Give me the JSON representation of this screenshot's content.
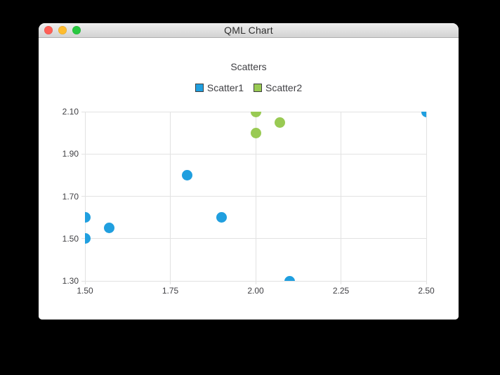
{
  "window": {
    "title": "QML Chart",
    "lights": {
      "close": "#ff5f57",
      "minimize": "#febc2e",
      "zoom": "#28c840"
    }
  },
  "chart_data": {
    "type": "scatter",
    "title": "Scatters",
    "series": [
      {
        "name": "Scatter1",
        "color": "#209fdf",
        "points": [
          [
            1.5,
            1.5
          ],
          [
            1.5,
            1.6
          ],
          [
            1.57,
            1.55
          ],
          [
            1.8,
            1.8
          ],
          [
            1.9,
            1.6
          ],
          [
            2.1,
            1.3
          ],
          [
            2.5,
            2.1
          ]
        ]
      },
      {
        "name": "Scatter2",
        "color": "#99ca53",
        "points": [
          [
            2.0,
            2.0
          ],
          [
            2.0,
            2.1
          ],
          [
            2.07,
            2.05
          ]
        ]
      }
    ],
    "xlim": [
      1.5,
      2.5
    ],
    "ylim": [
      1.3,
      2.1
    ],
    "x_ticks": [
      "1.50",
      "1.75",
      "2.00",
      "2.25",
      "2.50"
    ],
    "y_ticks": [
      "1.30",
      "1.50",
      "1.70",
      "1.90",
      "2.10"
    ],
    "grid": true,
    "legend_position": "top",
    "marker_size_px": 15,
    "grid_color": "#e2e2e2",
    "label_color": "#404044",
    "background": "#ffffff"
  }
}
